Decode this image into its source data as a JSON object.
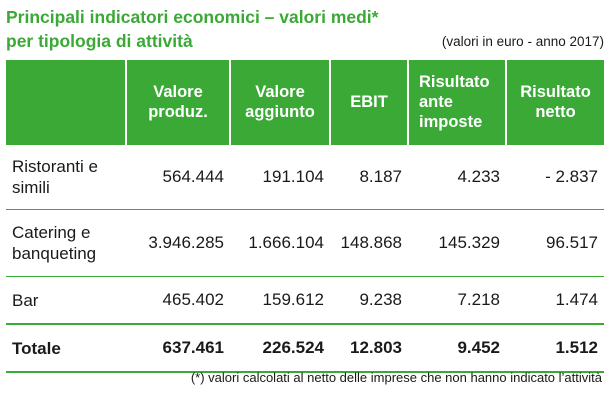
{
  "title": "Principali indicatori economici – valori medi*",
  "subtitle": "per tipologia di attività",
  "unit_note": "(valori in euro - anno 2017)",
  "columns": [
    "Valore produz.",
    "Valore aggiunto",
    "EBIT",
    "Risultato ante imposte",
    "Risultato netto"
  ],
  "rows": [
    {
      "label": "Ristoranti e simili",
      "values": [
        "564.444",
        "191.104",
        "8.187",
        "4.233",
        "- 2.837"
      ]
    },
    {
      "label": "Catering e banqueting",
      "values": [
        "3.946.285",
        "1.666.104",
        "148.868",
        "145.329",
        "96.517"
      ]
    },
    {
      "label": "Bar",
      "values": [
        "465.402",
        "159.612",
        "9.238",
        "7.218",
        "1.474"
      ]
    }
  ],
  "total": {
    "label": "Totale",
    "values": [
      "637.461",
      "226.524",
      "12.803",
      "9.452",
      "1.512"
    ]
  },
  "footnote": "(*) valori calcolati al netto delle imprese che non hanno indicato l’attività",
  "colors": {
    "accent": "#3aa935",
    "header_text": "#ffffff"
  }
}
